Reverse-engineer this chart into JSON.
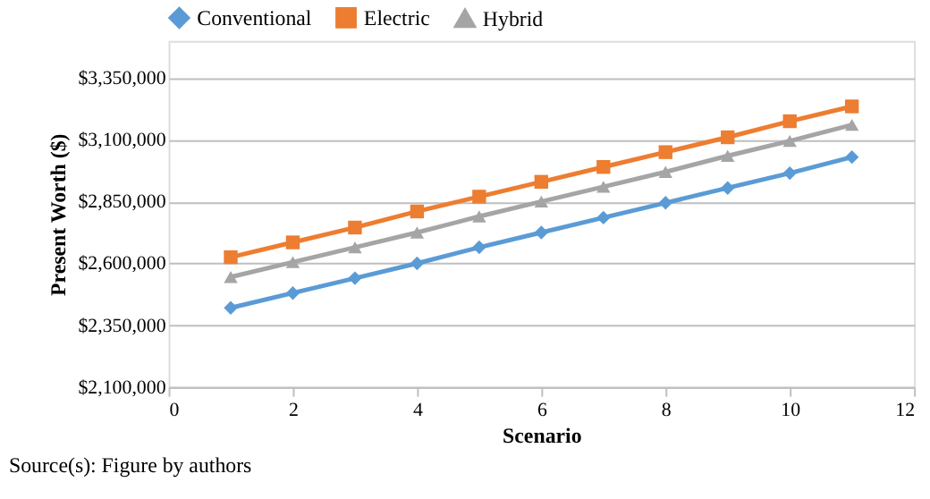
{
  "chart_data": {
    "type": "line",
    "xlabel": "Scenario",
    "ylabel": "Present Worth ($)",
    "x": [
      1,
      2,
      3,
      4,
      5,
      6,
      7,
      8,
      9,
      10,
      11
    ],
    "series": [
      {
        "name": "Conventional",
        "color": "#5b9bd5",
        "marker": "diamond",
        "values": [
          2420000,
          2480000,
          2540000,
          2600000,
          2665000,
          2725000,
          2785000,
          2845000,
          2905000,
          2965000,
          3030000
        ]
      },
      {
        "name": "Electric",
        "color": "#ed7d31",
        "marker": "square",
        "values": [
          2625000,
          2685000,
          2745000,
          2810000,
          2870000,
          2930000,
          2990000,
          3050000,
          3110000,
          3175000,
          3235000
        ]
      },
      {
        "name": "Hybrid",
        "color": "#a5a5a5",
        "marker": "triangle",
        "values": [
          2545000,
          2605000,
          2665000,
          2725000,
          2790000,
          2850000,
          2910000,
          2970000,
          3035000,
          3095000,
          3160000
        ]
      }
    ],
    "xlim": [
      0,
      12
    ],
    "xticks": [
      0,
      2,
      4,
      6,
      8,
      10,
      12
    ],
    "ylim": [
      2100000,
      3500000
    ],
    "yticks": [
      {
        "value": 2100000,
        "label": "$2,100,000"
      },
      {
        "value": 2350000,
        "label": "$2,350,000"
      },
      {
        "value": 2600000,
        "label": "$2,600,000"
      },
      {
        "value": 2850000,
        "label": "$2,850,000"
      },
      {
        "value": 3100000,
        "label": "$3,100,000"
      },
      {
        "value": 3350000,
        "label": "$3,350,000"
      }
    ],
    "grid": "y",
    "legend": "top",
    "line_style": "solid",
    "annotations": [
      "Source(s): Figure by authors"
    ]
  }
}
